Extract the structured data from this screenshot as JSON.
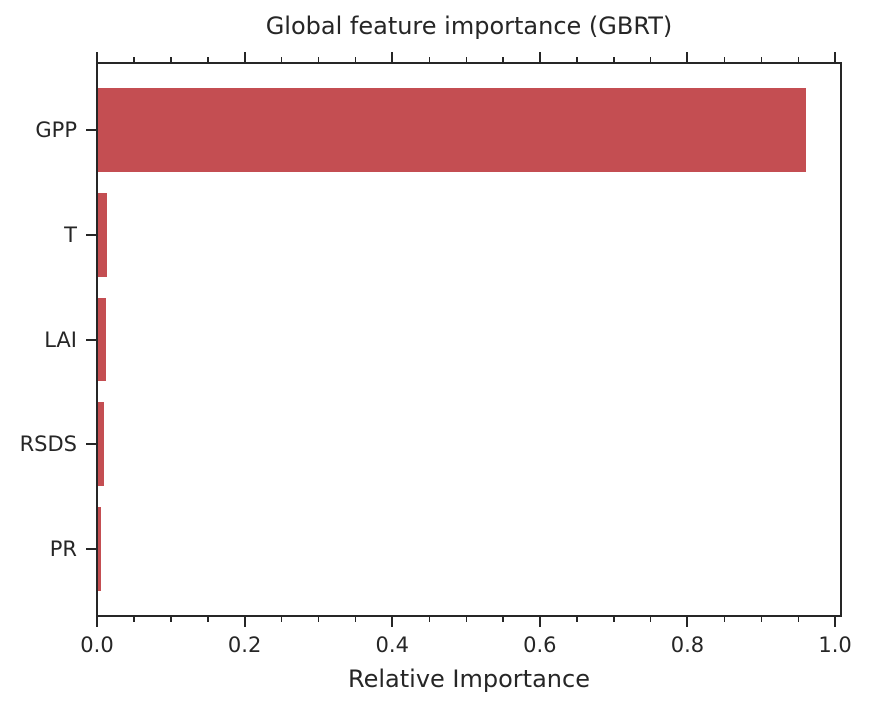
{
  "chart_data": {
    "type": "bar",
    "orientation": "horizontal",
    "title": "Global feature importance (GBRT)",
    "xlabel": "Relative Importance",
    "ylabel": "",
    "categories": [
      "GPP",
      "T",
      "LAI",
      "RSDS",
      "PR"
    ],
    "values": [
      0.96,
      0.013,
      0.012,
      0.009,
      0.006
    ],
    "xlim": [
      0,
      1.008
    ],
    "xticks": [
      0,
      0.2,
      0.4,
      0.6,
      0.8,
      1.0
    ],
    "xtick_labels": [
      "0.0",
      "0.2",
      "0.4",
      "0.6",
      "0.8",
      "1.0"
    ],
    "x_minor_tick_step": 0.05,
    "grid": false,
    "legend": "none",
    "bar_color": "#c44e52",
    "axis_color": "#262626",
    "text_color": "#262626",
    "background_color": "#ffffff"
  }
}
